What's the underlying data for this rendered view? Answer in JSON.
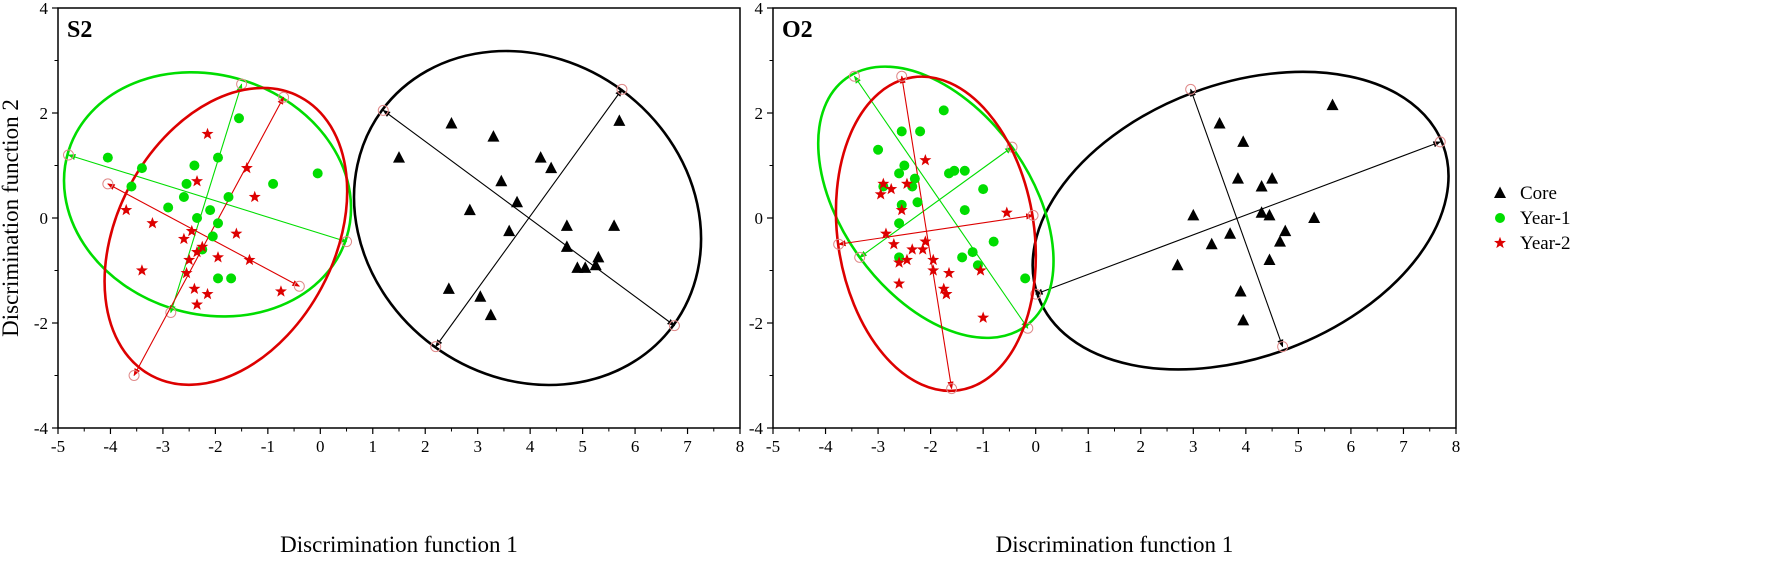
{
  "legend": [
    {
      "label": "Core",
      "color": "#000000",
      "marker": "triangle"
    },
    {
      "label": "Year-1",
      "color": "#00dd00",
      "marker": "circle"
    },
    {
      "label": "Year-2",
      "color": "#dd0000",
      "marker": "star"
    }
  ],
  "chart_data": [
    {
      "type": "scatter",
      "panel_label": "S2",
      "xlabel": "Discrimination function 1",
      "ylabel": "Discrimination function 2",
      "xlim": [
        -5,
        8
      ],
      "ylim": [
        -4,
        4
      ],
      "xticks": [
        -5,
        -4,
        -3,
        -2,
        -1,
        0,
        1,
        2,
        3,
        4,
        5,
        6,
        7,
        8
      ],
      "yticks": [
        -4,
        -2,
        0,
        2,
        4
      ],
      "series": [
        {
          "name": "Core",
          "color": "#000000",
          "marker": "triangle",
          "points": [
            [
              1.5,
              1.15
            ],
            [
              2.5,
              1.8
            ],
            [
              3.3,
              1.55
            ],
            [
              4.2,
              1.15
            ],
            [
              4.4,
              0.95
            ],
            [
              5.7,
              1.85
            ],
            [
              3.45,
              0.7
            ],
            [
              3.75,
              0.3
            ],
            [
              2.85,
              0.15
            ],
            [
              3.6,
              -0.25
            ],
            [
              4.7,
              -0.15
            ],
            [
              5.6,
              -0.15
            ],
            [
              4.7,
              -0.55
            ],
            [
              4.9,
              -0.95
            ],
            [
              5.05,
              -0.95
            ],
            [
              5.3,
              -0.75
            ],
            [
              5.25,
              -0.9
            ],
            [
              2.45,
              -1.35
            ],
            [
              3.05,
              -1.5
            ],
            [
              3.25,
              -1.85
            ]
          ]
        },
        {
          "name": "Year-1",
          "color": "#00dd00",
          "marker": "circle",
          "points": [
            [
              -4.05,
              1.15
            ],
            [
              -3.4,
              0.95
            ],
            [
              -3.6,
              0.6
            ],
            [
              -2.55,
              0.65
            ],
            [
              -2.4,
              1.0
            ],
            [
              -1.95,
              1.15
            ],
            [
              -1.55,
              1.9
            ],
            [
              -0.9,
              0.65
            ],
            [
              -0.05,
              0.85
            ],
            [
              -2.6,
              0.4
            ],
            [
              -2.9,
              0.2
            ],
            [
              -2.1,
              0.15
            ],
            [
              -1.75,
              0.4
            ],
            [
              -2.35,
              0.0
            ],
            [
              -1.95,
              -0.1
            ],
            [
              -2.05,
              -0.35
            ],
            [
              -2.25,
              -0.6
            ],
            [
              -1.95,
              -1.15
            ],
            [
              -1.7,
              -1.15
            ]
          ]
        },
        {
          "name": "Year-2",
          "color": "#dd0000",
          "marker": "star",
          "points": [
            [
              -2.15,
              1.6
            ],
            [
              -1.4,
              0.95
            ],
            [
              -2.35,
              0.7
            ],
            [
              -3.7,
              0.15
            ],
            [
              -3.2,
              -0.1
            ],
            [
              -2.45,
              -0.25
            ],
            [
              -1.6,
              -0.3
            ],
            [
              -2.6,
              -0.4
            ],
            [
              -2.25,
              -0.55
            ],
            [
              -2.35,
              -0.65
            ],
            [
              -2.5,
              -0.8
            ],
            [
              -1.95,
              -0.75
            ],
            [
              -2.55,
              -1.05
            ],
            [
              -3.4,
              -1.0
            ],
            [
              -2.4,
              -1.35
            ],
            [
              -2.15,
              -1.45
            ],
            [
              -2.35,
              -1.65
            ],
            [
              -1.35,
              -0.8
            ],
            [
              -0.75,
              -1.4
            ],
            [
              -1.25,
              0.4
            ]
          ]
        }
      ],
      "ellipses": [
        {
          "series": "Core",
          "color": "#000000",
          "center": [
            3.95,
            0.0
          ],
          "axis_ends": [
            [
              1.2,
              2.05
            ],
            [
              6.75,
              -2.05
            ],
            [
              2.2,
              -2.45
            ],
            [
              5.75,
              2.45
            ]
          ]
        },
        {
          "series": "Year-1",
          "color": "#00dd00",
          "center": [
            -2.15,
            0.45
          ],
          "axis_ends": [
            [
              -4.8,
              1.2
            ],
            [
              0.5,
              -0.45
            ],
            [
              -1.5,
              2.55
            ],
            [
              -2.85,
              -1.8
            ]
          ]
        },
        {
          "series": "Year-2",
          "color": "#dd0000",
          "center": [
            -1.8,
            -0.35
          ],
          "axis_ends": [
            [
              -4.05,
              0.65
            ],
            [
              -0.4,
              -1.3
            ],
            [
              -0.7,
              2.3
            ],
            [
              -3.55,
              -3.0
            ]
          ]
        }
      ]
    },
    {
      "type": "scatter",
      "panel_label": "O2",
      "xlabel": "Discrimination function 1",
      "ylabel": "",
      "xlim": [
        -5,
        8
      ],
      "ylim": [
        -4,
        4
      ],
      "xticks": [
        -5,
        -4,
        -3,
        -2,
        -1,
        0,
        1,
        2,
        3,
        4,
        5,
        6,
        7,
        8
      ],
      "yticks": [
        -4,
        -2,
        0,
        2,
        4
      ],
      "series": [
        {
          "name": "Core",
          "color": "#000000",
          "marker": "triangle",
          "points": [
            [
              5.65,
              2.15
            ],
            [
              3.5,
              1.8
            ],
            [
              3.95,
              1.45
            ],
            [
              3.85,
              0.75
            ],
            [
              4.5,
              0.75
            ],
            [
              4.3,
              0.6
            ],
            [
              4.3,
              0.1
            ],
            [
              4.45,
              0.05
            ],
            [
              5.3,
              0.0
            ],
            [
              3.0,
              0.05
            ],
            [
              4.75,
              -0.25
            ],
            [
              3.7,
              -0.3
            ],
            [
              4.65,
              -0.45
            ],
            [
              3.35,
              -0.5
            ],
            [
              4.45,
              -0.8
            ],
            [
              3.9,
              -1.4
            ],
            [
              3.95,
              -1.95
            ],
            [
              2.7,
              -0.9
            ]
          ]
        },
        {
          "name": "Year-1",
          "color": "#00dd00",
          "marker": "circle",
          "points": [
            [
              -1.75,
              2.05
            ],
            [
              -2.55,
              1.65
            ],
            [
              -2.2,
              1.65
            ],
            [
              -3.0,
              1.3
            ],
            [
              -2.5,
              1.0
            ],
            [
              -2.3,
              0.75
            ],
            [
              -2.6,
              0.85
            ],
            [
              -2.35,
              0.6
            ],
            [
              -1.55,
              0.9
            ],
            [
              -2.9,
              0.6
            ],
            [
              -1.65,
              0.85
            ],
            [
              -1.35,
              0.9
            ],
            [
              -1.0,
              0.55
            ],
            [
              -2.55,
              0.25
            ],
            [
              -2.25,
              0.3
            ],
            [
              -1.35,
              0.15
            ],
            [
              -2.6,
              -0.1
            ],
            [
              -2.6,
              -0.75
            ],
            [
              -1.4,
              -0.75
            ],
            [
              -1.1,
              -0.9
            ],
            [
              -1.2,
              -0.65
            ],
            [
              -0.8,
              -0.45
            ],
            [
              -0.2,
              -1.15
            ]
          ]
        },
        {
          "name": "Year-2",
          "color": "#dd0000",
          "marker": "star",
          "points": [
            [
              -2.9,
              0.65
            ],
            [
              -2.75,
              0.55
            ],
            [
              -2.45,
              0.65
            ],
            [
              -2.1,
              1.1
            ],
            [
              -2.95,
              0.45
            ],
            [
              -2.55,
              0.15
            ],
            [
              -2.85,
              -0.3
            ],
            [
              -2.7,
              -0.5
            ],
            [
              -2.6,
              -0.85
            ],
            [
              -2.45,
              -0.8
            ],
            [
              -2.1,
              -0.45
            ],
            [
              -2.15,
              -0.6
            ],
            [
              -2.35,
              -0.6
            ],
            [
              -1.95,
              -1.0
            ],
            [
              -1.95,
              -0.8
            ],
            [
              -2.6,
              -1.25
            ],
            [
              -1.75,
              -1.35
            ],
            [
              -1.7,
              -1.45
            ],
            [
              -1.05,
              -1.0
            ],
            [
              -1.0,
              -1.9
            ],
            [
              -0.55,
              0.1
            ],
            [
              -1.65,
              -1.05
            ],
            [
              -1.7,
              -1.45
            ]
          ]
        }
      ],
      "ellipses": [
        {
          "series": "Core",
          "color": "#000000",
          "center": [
            3.9,
            -0.05
          ],
          "axis_ends": [
            [
              7.7,
              1.45
            ],
            [
              0.0,
              -1.45
            ],
            [
              2.95,
              2.45
            ],
            [
              4.7,
              -2.45
            ]
          ]
        },
        {
          "series": "Year-1",
          "color": "#00dd00",
          "center": [
            -1.9,
            0.3
          ],
          "axis_ends": [
            [
              -0.45,
              1.35
            ],
            [
              -3.35,
              -0.75
            ],
            [
              -3.45,
              2.7
            ],
            [
              -0.15,
              -2.1
            ]
          ]
        },
        {
          "series": "Year-2",
          "color": "#dd0000",
          "center": [
            -1.9,
            -0.3
          ],
          "axis_ends": [
            [
              -3.75,
              -0.5
            ],
            [
              -0.05,
              0.05
            ],
            [
              -2.55,
              2.7
            ],
            [
              -1.6,
              -3.25
            ]
          ]
        }
      ]
    }
  ]
}
